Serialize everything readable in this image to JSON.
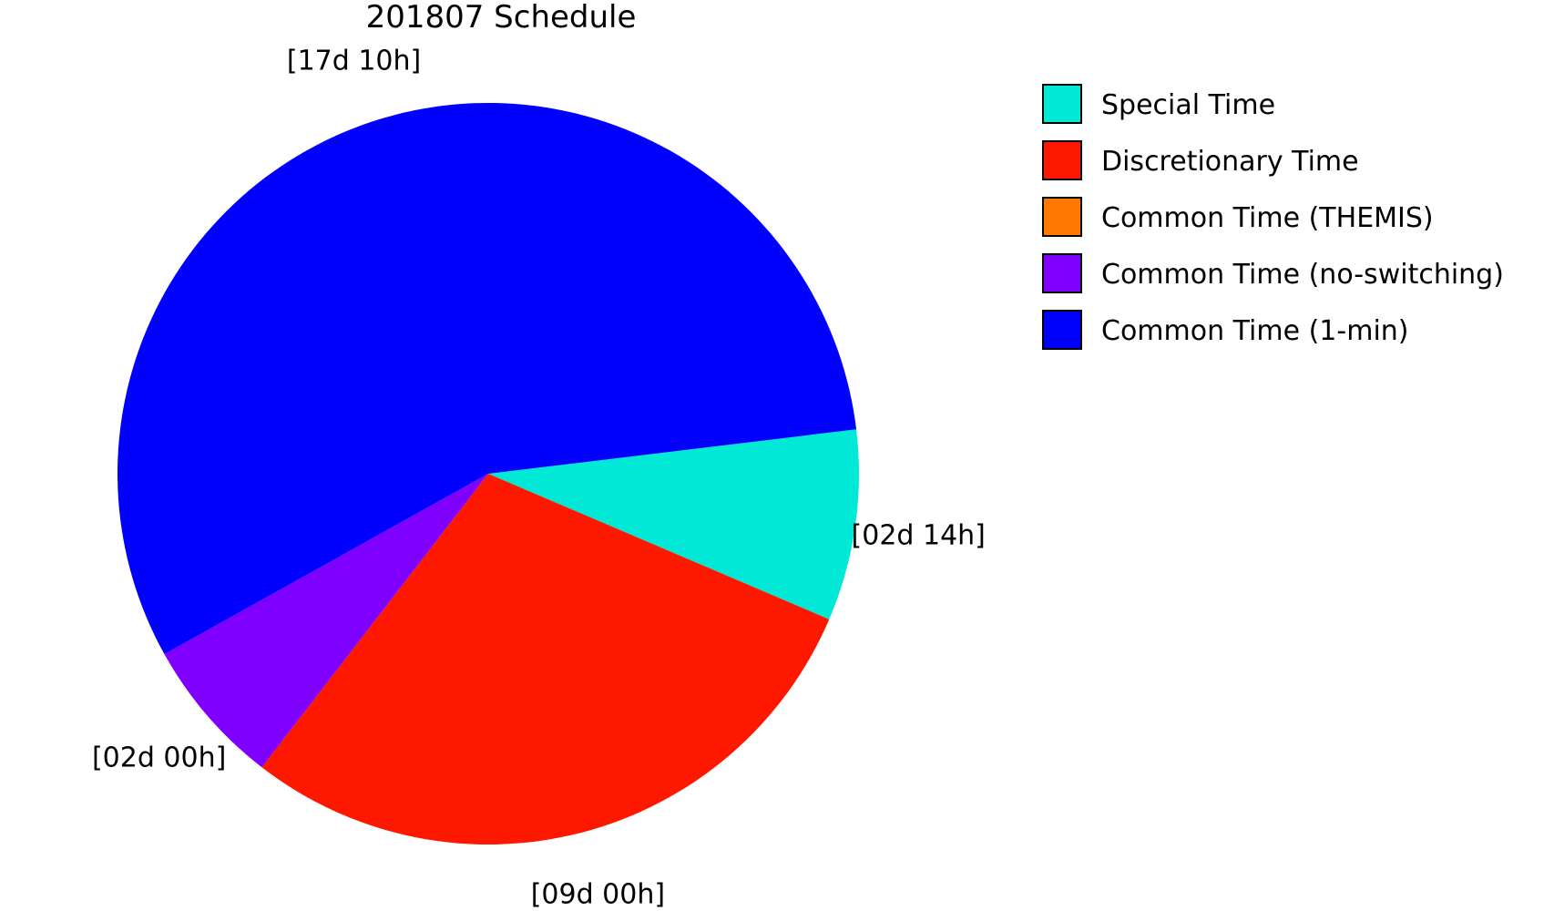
{
  "chart_data": {
    "type": "pie",
    "title": "201807 Schedule",
    "slices": [
      {
        "name": "Special Time",
        "value": 62,
        "label": "[02d 14h]",
        "color": "#00e8d6"
      },
      {
        "name": "Discretionary Time",
        "value": 216,
        "label": "[09d 00h]",
        "color": "#ff1800"
      },
      {
        "name": "Common Time (THEMIS)",
        "value": 0,
        "label": "",
        "color": "#ff7800"
      },
      {
        "name": "Common Time (no-switching)",
        "value": 48,
        "label": "[02d 00h]",
        "color": "#8000ff"
      },
      {
        "name": "Common Time (1-min)",
        "value": 418,
        "label": "[17d 10h]",
        "color": "#0000ff"
      }
    ],
    "legend_position": "right"
  }
}
